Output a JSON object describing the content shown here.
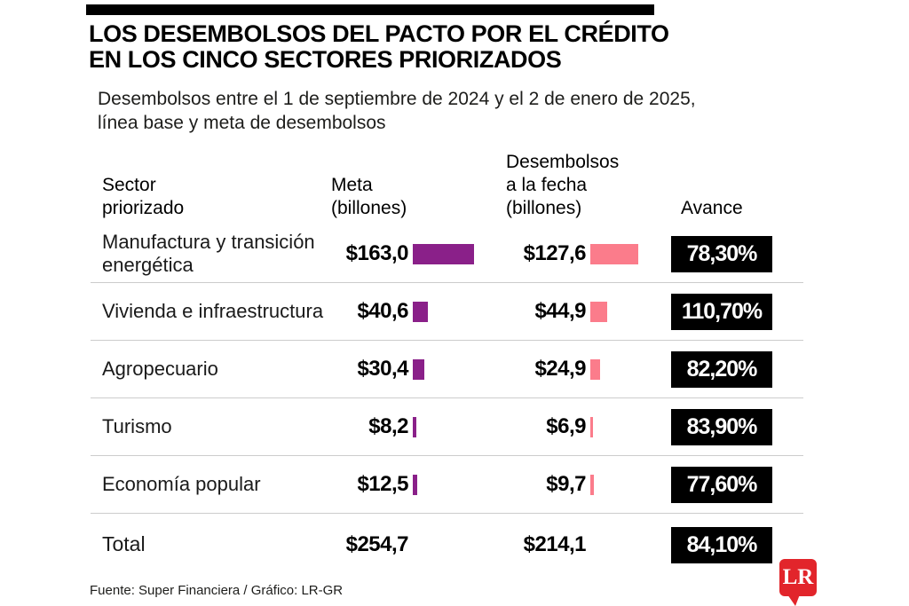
{
  "header": {
    "title": "LOS DESEMBOLSOS DEL PACTO POR EL CRÉDITO\nEN LOS CINCO SECTORES PRIORIZADOS",
    "subtitle": "Desembolsos entre el 1 de septiembre de 2024 y el 2 de enero de 2025, línea base y meta de desembolsos"
  },
  "table": {
    "headers": [
      "Sector\npriorizado",
      "Meta\n(billones)",
      "Desembolsos\na la fecha\n(billones)",
      "Avance"
    ],
    "rows": [
      {
        "sector": "Manufactura y\ntransición energética",
        "meta": "$163,0",
        "meta_value": 163.0,
        "desembolso": "$127,6",
        "desembolso_value": 127.6,
        "avance": "78,30%",
        "is_total": false
      },
      {
        "sector": "Vivienda e\ninfraestructura",
        "meta": "$40,6",
        "meta_value": 40.6,
        "desembolso": "$44,9",
        "desembolso_value": 44.9,
        "avance": "110,70%",
        "is_total": false
      },
      {
        "sector": "Agropecuario",
        "meta": "$30,4",
        "meta_value": 30.4,
        "desembolso": "$24,9",
        "desembolso_value": 24.9,
        "avance": "82,20%",
        "is_total": false
      },
      {
        "sector": "Turismo",
        "meta": "$8,2",
        "meta_value": 8.2,
        "desembolso": "$6,9",
        "desembolso_value": 6.9,
        "avance": "83,90%",
        "is_total": false
      },
      {
        "sector": "Economía popular",
        "meta": "$12,5",
        "meta_value": 12.5,
        "desembolso": "$9,7",
        "desembolso_value": 9.7,
        "avance": "77,60%",
        "is_total": false
      },
      {
        "sector": "Total",
        "meta": "$254,7",
        "meta_value": 254.7,
        "desembolso": "$214,1",
        "desembolso_value": 214.1,
        "avance": "84,10%",
        "is_total": true
      }
    ]
  },
  "chart_data": {
    "type": "bar",
    "title": "LOS DESEMBOLSOS DEL PACTO POR EL CRÉDITO EN LOS CINCO SECTORES PRIORIZADOS",
    "subtitle": "Desembolsos entre el 1 de septiembre de 2024 y el 2 de enero de 2025, línea base y meta de desembolsos",
    "categories": [
      "Manufactura y transición energética",
      "Vivienda e infraestructura",
      "Agropecuario",
      "Turismo",
      "Economía popular",
      "Total"
    ],
    "series": [
      {
        "name": "Meta (billones)",
        "values": [
          163.0,
          40.6,
          30.4,
          8.2,
          12.5,
          254.7
        ],
        "color": "#8a2089"
      },
      {
        "name": "Desembolsos a la fecha (billones)",
        "values": [
          127.6,
          44.9,
          24.9,
          6.9,
          9.7,
          214.1
        ],
        "color": "#fb7c8b"
      },
      {
        "name": "Avance (%)",
        "values": [
          78.3,
          110.7,
          82.2,
          83.9,
          77.6,
          84.1
        ],
        "color": "#000000"
      }
    ],
    "unit": "billones de pesos",
    "legend_position": "none",
    "grid": false,
    "source": "Fuente: Super Financiera / Gráfico: LR-GR"
  },
  "footer": {
    "source": "Fuente: Super Financiera / Gráfico: LR-GR"
  },
  "brand": {
    "logo_text": "LR",
    "logo_color": "#e2252b"
  },
  "colors": {
    "meta_bar": "#8a2089",
    "desembolso_bar": "#fb7c8b",
    "badge_bg": "#000000",
    "badge_text": "#ffffff",
    "separator": "#cccccc"
  }
}
